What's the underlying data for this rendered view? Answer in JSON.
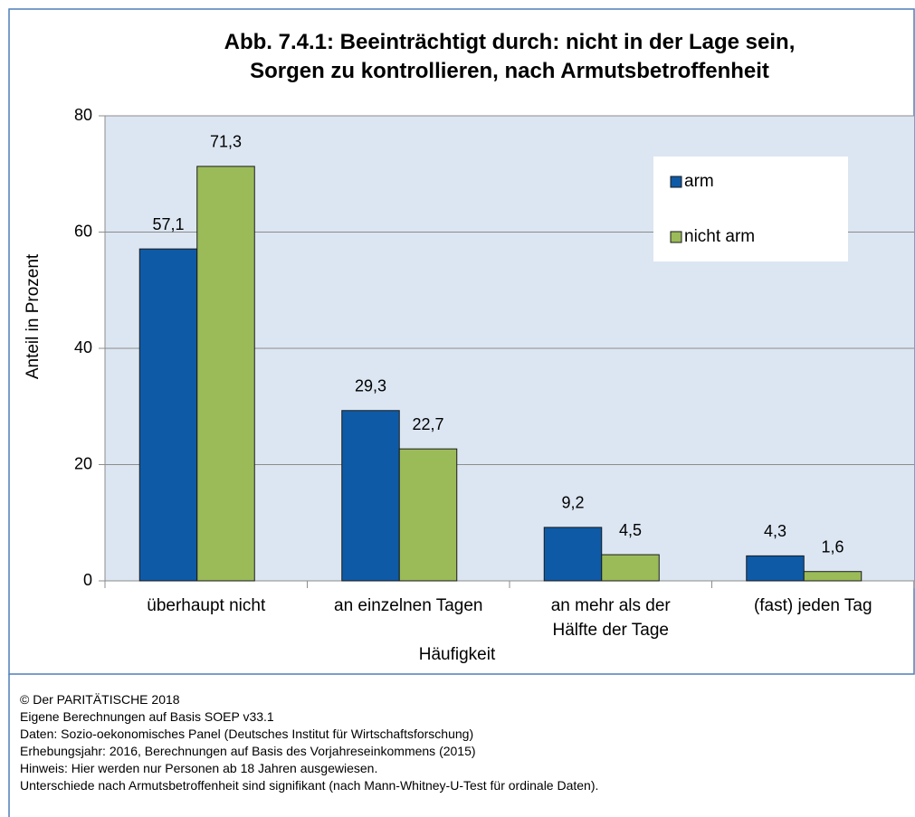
{
  "chart_data": {
    "type": "bar",
    "title": "Abb. 7.4.1: Beeinträchtigt durch: nicht in der Lage sein,\nSorgen zu kontrollieren, nach Armutsbetroffenheit",
    "x_label": "Häufigkeit",
    "y_label": "Anteil in Prozent",
    "categories": [
      "überhaupt nicht",
      "an einzelnen Tagen",
      "an mehr als der\nHälfte der Tage",
      "(fast) jeden Tag"
    ],
    "series": [
      {
        "name": "arm",
        "color": "#0e5aa7",
        "values": [
          57.1,
          29.3,
          9.2,
          4.3
        ],
        "value_labels": [
          "57,1",
          "29,3",
          "9,2",
          "4,3"
        ]
      },
      {
        "name": "nicht arm",
        "color": "#9bbb59",
        "values": [
          71.3,
          22.7,
          4.5,
          1.6
        ],
        "value_labels": [
          "71,3",
          "22,7",
          "4,5",
          "1,6"
        ]
      }
    ],
    "ylim": [
      0,
      80
    ],
    "yticks": [
      0,
      20,
      40,
      60,
      80
    ],
    "grid": true,
    "legend": "upper right",
    "notes": [
      "© Der PARITÄTISCHE 2018",
      "Eigene Berechnungen auf Basis SOEP v33.1",
      "Daten: Sozio-oekonomisches Panel (Deutsches Institut für Wirtschaftsforschung)",
      "Erhebungsjahr: 2016, Berechnungen auf Basis des Vorjahreseinkommens (2015)",
      "Hinweis: Hier werden nur Personen ab 18 Jahren ausgewiesen.",
      "Unterschiede nach Armutsbetroffenheit sind signifikant (nach Mann-Whitney-U-Test für ordinale Daten)."
    ]
  }
}
